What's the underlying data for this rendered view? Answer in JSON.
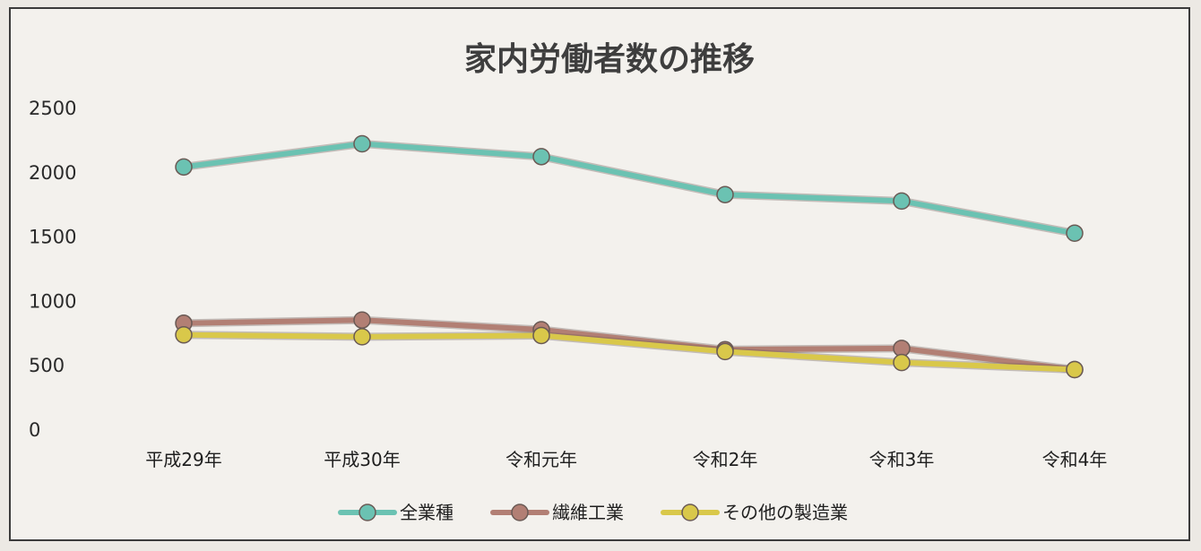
{
  "chart_data": {
    "type": "line",
    "title": "家内労働者数の推移",
    "xlabel": "",
    "ylabel": "",
    "categories": [
      "平成29年",
      "平成30年",
      "令和元年",
      "令和2年",
      "令和3年",
      "令和4年"
    ],
    "ylim": [
      0,
      2500
    ],
    "yticks": [
      "2500",
      "2000",
      "1500",
      "1000",
      "500",
      "0"
    ],
    "grid": false,
    "legend": "bottom",
    "series": [
      {
        "name": "全業種",
        "color": "#6bc2b2",
        "values": [
          2045,
          2225,
          2125,
          1830,
          1780,
          1530
        ]
      },
      {
        "name": "繊維工業",
        "color": "#b27f74",
        "values": [
          830,
          855,
          780,
          625,
          635,
          470
        ]
      },
      {
        "name": "その他の製造業",
        "color": "#d9c84a",
        "values": [
          740,
          725,
          735,
          610,
          525,
          470
        ]
      }
    ]
  }
}
